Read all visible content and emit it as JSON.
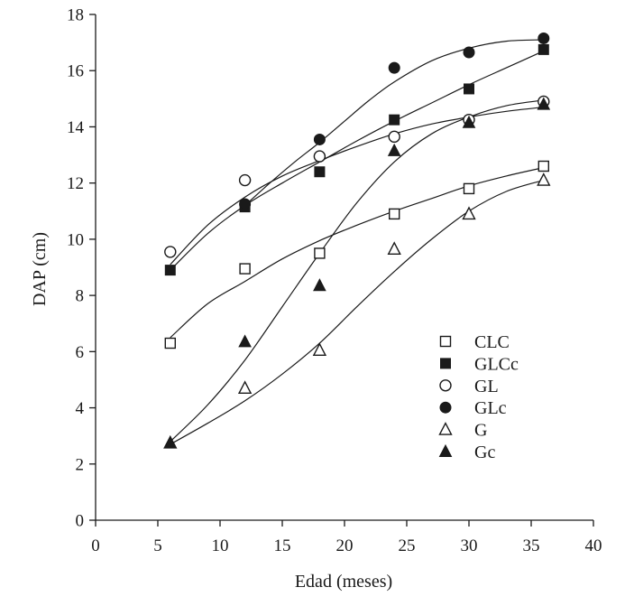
{
  "chart_data": {
    "type": "scatter",
    "title": "",
    "xlabel": "Edad (meses)",
    "ylabel": "DAP (cm)",
    "xlim": [
      0,
      40
    ],
    "ylim": [
      0,
      18
    ],
    "xticks": [
      0,
      5,
      10,
      15,
      20,
      25,
      30,
      35,
      40
    ],
    "yticks": [
      0,
      2,
      4,
      6,
      8,
      10,
      12,
      14,
      16,
      18
    ],
    "grid": false,
    "legend_position": "lower-right",
    "x": [
      6,
      12,
      18,
      24,
      30,
      36
    ],
    "series": [
      {
        "name": "CLC",
        "marker": "square-open",
        "values": [
          6.3,
          8.95,
          9.5,
          10.9,
          11.8,
          12.6
        ],
        "fit": [
          [
            6,
            6.5
          ],
          [
            9,
            7.7
          ],
          [
            12,
            8.5
          ],
          [
            15,
            9.3
          ],
          [
            18,
            9.95
          ],
          [
            21,
            10.5
          ],
          [
            24,
            11.0
          ],
          [
            27,
            11.45
          ],
          [
            30,
            11.9
          ],
          [
            33,
            12.25
          ],
          [
            36,
            12.55
          ]
        ]
      },
      {
        "name": "GLCc",
        "marker": "square-filled",
        "values": [
          8.9,
          11.15,
          12.4,
          14.25,
          15.35,
          16.75
        ],
        "fit": [
          [
            6,
            8.9
          ],
          [
            9,
            10.2
          ],
          [
            12,
            11.2
          ],
          [
            15,
            12.0
          ],
          [
            18,
            12.75
          ],
          [
            21,
            13.5
          ],
          [
            24,
            14.2
          ],
          [
            27,
            14.85
          ],
          [
            30,
            15.5
          ],
          [
            33,
            16.1
          ],
          [
            36,
            16.7
          ]
        ]
      },
      {
        "name": "GL",
        "marker": "circle-open",
        "values": [
          9.55,
          12.1,
          12.95,
          13.65,
          14.25,
          14.9
        ],
        "fit": [
          [
            6,
            9.1
          ],
          [
            9,
            10.5
          ],
          [
            12,
            11.5
          ],
          [
            15,
            12.25
          ],
          [
            18,
            12.8
          ],
          [
            21,
            13.3
          ],
          [
            24,
            13.75
          ],
          [
            27,
            14.1
          ],
          [
            30,
            14.35
          ],
          [
            33,
            14.55
          ],
          [
            36,
            14.7
          ]
        ]
      },
      {
        "name": "GLc",
        "marker": "circle-filled",
        "values": [
          null,
          11.25,
          13.55,
          16.1,
          16.65,
          17.15
        ],
        "fit": [
          [
            12,
            11.2
          ],
          [
            14,
            12.0
          ],
          [
            16,
            12.75
          ],
          [
            18,
            13.45
          ],
          [
            20,
            14.2
          ],
          [
            22,
            14.95
          ],
          [
            24,
            15.6
          ],
          [
            27,
            16.35
          ],
          [
            30,
            16.8
          ],
          [
            33,
            17.05
          ],
          [
            36,
            17.1
          ]
        ]
      },
      {
        "name": "G",
        "marker": "triangle-open",
        "values": [
          2.75,
          4.7,
          6.05,
          9.65,
          10.9,
          12.1
        ],
        "fit": [
          [
            6,
            2.7
          ],
          [
            9,
            3.45
          ],
          [
            12,
            4.25
          ],
          [
            15,
            5.2
          ],
          [
            18,
            6.3
          ],
          [
            21,
            7.6
          ],
          [
            24,
            8.85
          ],
          [
            27,
            10.0
          ],
          [
            30,
            11.0
          ],
          [
            33,
            11.7
          ],
          [
            36,
            12.1
          ]
        ]
      },
      {
        "name": "Gc",
        "marker": "triangle-filled",
        "values": [
          2.75,
          6.35,
          8.35,
          13.15,
          14.15,
          14.8
        ],
        "fit": [
          [
            6,
            2.8
          ],
          [
            9,
            4.1
          ],
          [
            12,
            5.7
          ],
          [
            15,
            7.6
          ],
          [
            18,
            9.5
          ],
          [
            21,
            11.3
          ],
          [
            24,
            12.75
          ],
          [
            27,
            13.75
          ],
          [
            30,
            14.35
          ],
          [
            33,
            14.75
          ],
          [
            36,
            14.95
          ]
        ]
      }
    ]
  }
}
